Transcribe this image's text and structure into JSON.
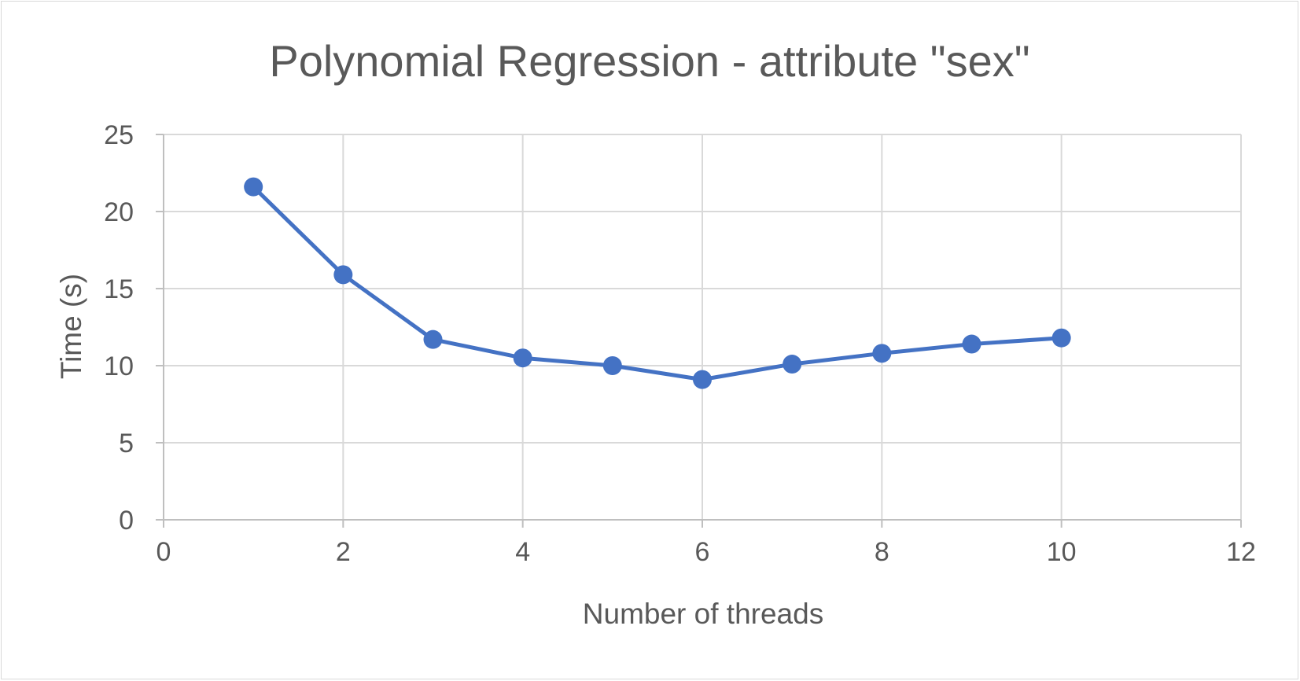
{
  "chart_data": {
    "type": "line",
    "title": "Polynomial Regression - attribute \"sex\"",
    "xlabel": "Number of threads",
    "ylabel": "Time (s)",
    "xlim": [
      0,
      12
    ],
    "ylim": [
      0,
      25
    ],
    "xticks": [
      0,
      2,
      4,
      6,
      8,
      10,
      12
    ],
    "yticks": [
      0,
      5,
      10,
      15,
      20,
      25
    ],
    "grid": true,
    "legend": "none",
    "series": [
      {
        "color": "#4472c4",
        "x": [
          1,
          2,
          3,
          4,
          5,
          6,
          7,
          8,
          9,
          10
        ],
        "y": [
          21.6,
          15.9,
          11.7,
          10.5,
          10.0,
          9.1,
          10.1,
          10.8,
          11.4,
          11.8
        ]
      }
    ]
  }
}
